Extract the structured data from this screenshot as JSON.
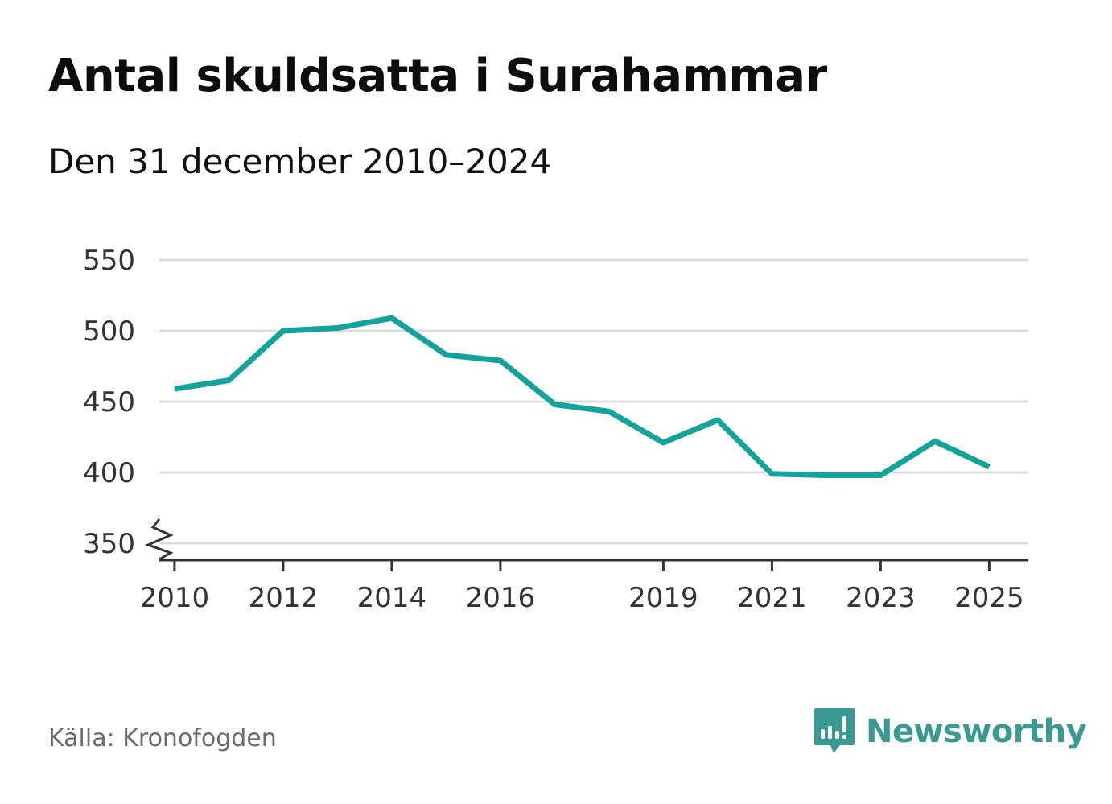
{
  "header": {
    "title": "Antal skuldsatta i Surahammar",
    "subtitle": "Den 31 december 2010–2024"
  },
  "footer": {
    "source": "Källa: Kronofogden",
    "brand": "Newsworthy"
  },
  "colors": {
    "line": "#14a39a",
    "grid": "#dddddd",
    "axis": "#333333",
    "brand": "#3a9a92"
  },
  "icons": {
    "brand_logo": "newsworthy-logo-icon",
    "axis_break": "axis-break-icon"
  },
  "chart_data": {
    "type": "line",
    "title": "Antal skuldsatta i Surahammar",
    "subtitle": "Den 31 december 2010–2024",
    "xlabel": "",
    "ylabel": "",
    "x": [
      2010,
      2011,
      2012,
      2013,
      2014,
      2015,
      2016,
      2017,
      2018,
      2019,
      2020,
      2021,
      2022,
      2023,
      2024,
      2025
    ],
    "series": [
      {
        "name": "Antal skuldsatta",
        "values": [
          459,
          465,
          500,
          502,
          509,
          483,
          479,
          448,
          443,
          421,
          437,
          399,
          398,
          398,
          422,
          404
        ]
      }
    ],
    "x_ticks": [
      "2010",
      "2012",
      "2014",
      "2016",
      "2019",
      "2021",
      "2023",
      "2025"
    ],
    "y_ticks": [
      "350",
      "400",
      "450",
      "500",
      "550"
    ],
    "xlim": [
      2009.72,
      2025.72
    ],
    "ylim": [
      338,
      550
    ],
    "grid": true,
    "axis_break": true,
    "legend": "none"
  }
}
